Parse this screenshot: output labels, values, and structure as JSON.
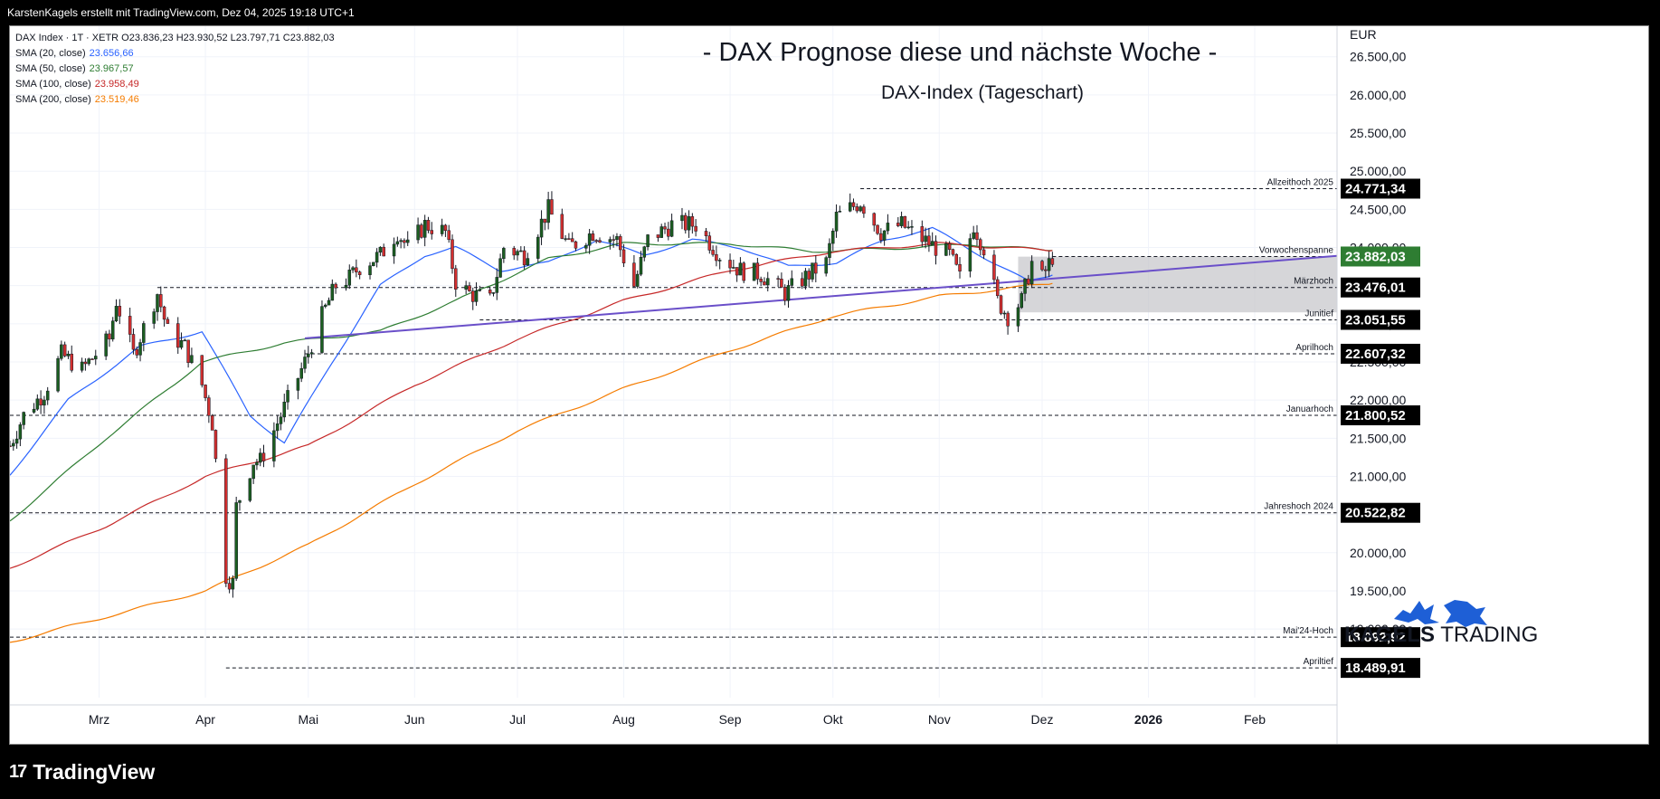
{
  "header": {
    "attribution": "KarstenKagels erstellt mit TradingView.com, Dez 04, 2025 19:18 UTC+1"
  },
  "legend": {
    "symbol_line": "DAX Index · 1T · XETR  O23.836,23  H23.930,52  L23.797,71  C23.882,03",
    "sma": [
      {
        "label": "SMA (20, close)",
        "value": "23.656,66",
        "color": "#2962ff"
      },
      {
        "label": "SMA (50, close)",
        "value": "23.967,57",
        "color": "#2e7d32"
      },
      {
        "label": "SMA (100, close)",
        "value": "23.958,49",
        "color": "#c62828"
      },
      {
        "label": "SMA (200, close)",
        "value": "23.519,46",
        "color": "#f57c00"
      }
    ]
  },
  "footer": {
    "brand_mark": "17",
    "brand": "TradingView"
  },
  "logo": {
    "text_bold": "KAGELS",
    "text_light": " TRADING"
  },
  "chart_data": {
    "type": "candlestick",
    "title": "- DAX Prognose diese und nächste Woche -",
    "subtitle": "DAX-Index (Tageschart)",
    "currency": "EUR",
    "ylim": [
      18100,
      26900
    ],
    "y_ticks": [
      19000,
      19500,
      20000,
      20500,
      21000,
      21500,
      22000,
      22500,
      23000,
      23500,
      24000,
      24500,
      25000,
      25500,
      26000,
      26500
    ],
    "y_tick_labels": [
      "19.000,00",
      "19.500,00",
      "20.000,00",
      "20.500,00",
      "21.000,00",
      "21.500,00",
      "22.000,00",
      "22.500,00",
      "23.000,00",
      "23.500,00",
      "24.000,00",
      "24.500,00",
      "25.000,00",
      "25.500,00",
      "26.000,00",
      "26.500,00"
    ],
    "x_range": [
      "2025-02-03",
      "2026-02-25"
    ],
    "x_labels": [
      {
        "date": "2025-03-01",
        "label": "Mrz",
        "bold": false
      },
      {
        "date": "2025-04-01",
        "label": "Apr",
        "bold": false
      },
      {
        "date": "2025-05-01",
        "label": "Mai",
        "bold": false
      },
      {
        "date": "2025-06-01",
        "label": "Jun",
        "bold": false
      },
      {
        "date": "2025-07-01",
        "label": "Jul",
        "bold": false
      },
      {
        "date": "2025-08-01",
        "label": "Aug",
        "bold": false
      },
      {
        "date": "2025-09-01",
        "label": "Sep",
        "bold": false
      },
      {
        "date": "2025-10-01",
        "label": "Okt",
        "bold": false
      },
      {
        "date": "2025-11-01",
        "label": "Nov",
        "bold": false
      },
      {
        "date": "2025-12-01",
        "label": "Dez",
        "bold": false
      },
      {
        "date": "2026-01-01",
        "label": "2026",
        "bold": true
      },
      {
        "date": "2026-02-01",
        "label": "Feb",
        "bold": false
      }
    ],
    "price_anchors": [
      [
        "2025-02-03",
        21400
      ],
      [
        "2025-02-07",
        21800
      ],
      [
        "2025-02-13",
        22100
      ],
      [
        "2025-02-18",
        22600
      ],
      [
        "2025-02-24",
        22400
      ],
      [
        "2025-03-04",
        22800
      ],
      [
        "2025-03-06",
        23300
      ],
      [
        "2025-03-11",
        22600
      ],
      [
        "2025-03-18",
        23400
      ],
      [
        "2025-03-21",
        22900
      ],
      [
        "2025-03-26",
        22700
      ],
      [
        "2025-03-31",
        22200
      ],
      [
        "2025-04-03",
        21700
      ],
      [
        "2025-04-07",
        19700
      ],
      [
        "2025-04-09",
        19600
      ],
      [
        "2025-04-10",
        20600
      ],
      [
        "2025-04-15",
        21200
      ],
      [
        "2025-04-17",
        21200
      ],
      [
        "2025-04-24",
        21900
      ],
      [
        "2025-04-30",
        22500
      ],
      [
        "2025-05-05",
        23100
      ],
      [
        "2025-05-09",
        23500
      ],
      [
        "2025-05-13",
        23600
      ],
      [
        "2025-05-16",
        23750
      ],
      [
        "2025-05-22",
        23900
      ],
      [
        "2025-05-27",
        24200
      ],
      [
        "2025-05-30",
        24000
      ],
      [
        "2025-06-04",
        24300
      ],
      [
        "2025-06-10",
        24200
      ],
      [
        "2025-06-13",
        23550
      ],
      [
        "2025-06-17",
        23400
      ],
      [
        "2025-06-23",
        23300
      ],
      [
        "2025-06-27",
        24000
      ],
      [
        "2025-07-03",
        23900
      ],
      [
        "2025-07-10",
        24500
      ],
      [
        "2025-07-16",
        24000
      ],
      [
        "2025-07-23",
        24200
      ],
      [
        "2025-07-30",
        24100
      ],
      [
        "2025-08-04",
        23500
      ],
      [
        "2025-08-08",
        24100
      ],
      [
        "2025-08-15",
        24300
      ],
      [
        "2025-08-22",
        24300
      ],
      [
        "2025-08-29",
        23900
      ],
      [
        "2025-09-04",
        23700
      ],
      [
        "2025-09-10",
        23650
      ],
      [
        "2025-09-17",
        23400
      ],
      [
        "2025-09-24",
        23650
      ],
      [
        "2025-09-29",
        23800
      ],
      [
        "2025-10-02",
        24400
      ],
      [
        "2025-10-09",
        24600
      ],
      [
        "2025-10-15",
        24200
      ],
      [
        "2025-10-21",
        24300
      ],
      [
        "2025-10-24",
        24200
      ],
      [
        "2025-10-31",
        24000
      ],
      [
        "2025-11-04",
        23900
      ],
      [
        "2025-11-07",
        23600
      ],
      [
        "2025-11-11",
        24300
      ],
      [
        "2025-11-14",
        24000
      ],
      [
        "2025-11-18",
        23300
      ],
      [
        "2025-11-21",
        23100
      ],
      [
        "2025-11-25",
        23300
      ],
      [
        "2025-11-28",
        23800
      ],
      [
        "2025-12-01",
        23600
      ],
      [
        "2025-12-04",
        23882
      ]
    ],
    "levels": [
      {
        "label": "Allzeithoch 2025",
        "value": 24771.34,
        "tag": "24.771,34",
        "from": "2025-10-09"
      },
      {
        "label": "Vorwochenspanne",
        "value": 23882.03,
        "tag": "23.882,03",
        "from": "2025-12-04",
        "current": true
      },
      {
        "label": "Märzhoch",
        "value": 23476.01,
        "tag": "23.476,01",
        "from": "2025-03-18"
      },
      {
        "label": "Junitief",
        "value": 23051.55,
        "tag": "23.051,55",
        "from": "2025-06-20"
      },
      {
        "label": "Aprilhoch",
        "value": 22607.32,
        "tag": "22.607,32",
        "from": "2025-04-30"
      },
      {
        "label": "Januarhoch",
        "value": 21800.52,
        "tag": "21.800,52",
        "from": "2025-02-03"
      },
      {
        "label": "Jahreshoch 2024",
        "value": 20522.82,
        "tag": "20.522,82",
        "from": "2025-02-03"
      },
      {
        "label": "Mai'24-Hoch",
        "value": 18892.92,
        "tag": "18.892,92",
        "from": "2025-02-03"
      },
      {
        "label": "Apriltief",
        "value": 18489.91,
        "tag": "18.489,91",
        "from": "2025-04-07"
      }
    ],
    "range_box": {
      "from": "2025-11-24",
      "to": "2026-02-25",
      "low": 23150,
      "high": 23880,
      "color": "#c8c8cc"
    },
    "trendline": {
      "p1": [
        "2025-04-30",
        22810
      ],
      "p2": [
        "2026-02-25",
        23890
      ],
      "color": "#6a4fc9"
    },
    "sma_paths": [
      {
        "name": "SMA (20, close)",
        "color": "#2962ff",
        "points": [
          [
            "2025-02-03",
            21020
          ],
          [
            "2025-02-20",
            22000
          ],
          [
            "2025-03-13",
            22700
          ],
          [
            "2025-03-31",
            22900
          ],
          [
            "2025-04-14",
            21800
          ],
          [
            "2025-04-24",
            21440
          ],
          [
            "2025-05-08",
            22500
          ],
          [
            "2025-05-22",
            23500
          ],
          [
            "2025-06-04",
            23900
          ],
          [
            "2025-06-13",
            24000
          ],
          [
            "2025-06-26",
            23700
          ],
          [
            "2025-07-10",
            23800
          ],
          [
            "2025-07-24",
            24100
          ],
          [
            "2025-08-07",
            23900
          ],
          [
            "2025-08-21",
            24100
          ],
          [
            "2025-09-04",
            24000
          ],
          [
            "2025-09-18",
            23750
          ],
          [
            "2025-10-02",
            23800
          ],
          [
            "2025-10-16",
            24100
          ],
          [
            "2025-10-30",
            24250
          ],
          [
            "2025-11-13",
            23900
          ],
          [
            "2025-11-27",
            23550
          ],
          [
            "2025-12-04",
            23640
          ]
        ]
      },
      {
        "name": "SMA (50, close)",
        "color": "#2e7d32",
        "points": [
          [
            "2025-02-03",
            20420
          ],
          [
            "2025-03-03",
            21500
          ],
          [
            "2025-03-31",
            22500
          ],
          [
            "2025-04-24",
            22750
          ],
          [
            "2025-05-22",
            22900
          ],
          [
            "2025-06-13",
            23300
          ],
          [
            "2025-07-10",
            23850
          ],
          [
            "2025-08-01",
            24050
          ],
          [
            "2025-09-01",
            24050
          ],
          [
            "2025-09-25",
            23950
          ],
          [
            "2025-10-15",
            23980
          ],
          [
            "2025-11-10",
            24040
          ],
          [
            "2025-12-04",
            23960
          ]
        ]
      },
      {
        "name": "SMA (100, close)",
        "color": "#c62828",
        "points": [
          [
            "2025-02-03",
            19800
          ],
          [
            "2025-03-03",
            20350
          ],
          [
            "2025-04-01",
            21000
          ],
          [
            "2025-05-01",
            21400
          ],
          [
            "2025-06-01",
            22200
          ],
          [
            "2025-07-01",
            22800
          ],
          [
            "2025-08-01",
            23300
          ],
          [
            "2025-09-01",
            23700
          ],
          [
            "2025-10-01",
            23950
          ],
          [
            "2025-11-01",
            24050
          ],
          [
            "2025-12-04",
            23960
          ]
        ]
      },
      {
        "name": "SMA (200, close)",
        "color": "#f57c00",
        "points": [
          [
            "2025-02-03",
            18830
          ],
          [
            "2025-04-01",
            19500
          ],
          [
            "2025-05-01",
            20100
          ],
          [
            "2025-06-01",
            20900
          ],
          [
            "2025-07-01",
            21600
          ],
          [
            "2025-08-01",
            22150
          ],
          [
            "2025-09-01",
            22650
          ],
          [
            "2025-10-01",
            23100
          ],
          [
            "2025-11-01",
            23360
          ],
          [
            "2025-12-04",
            23530
          ]
        ]
      }
    ],
    "colors": {
      "up": "#26a69a",
      "up_body": "#1b5e20",
      "down": "#d32f2f",
      "grid": "#f0f3fa",
      "tag_bg": "#000000",
      "tag_current": "#2e7d32"
    }
  }
}
